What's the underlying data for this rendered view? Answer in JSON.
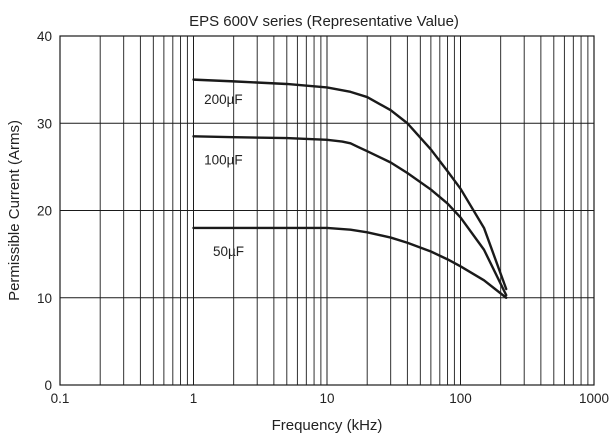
{
  "chart_data": {
    "type": "line",
    "title": "EPS 600V series (Representative Value)",
    "xlabel": "Frequency (kHz)",
    "ylabel": "Permissible Current (Arms)",
    "x_scale": "log",
    "xlim": [
      0.1,
      1000
    ],
    "ylim": [
      0,
      40
    ],
    "x_ticks": [
      {
        "value": 0.1,
        "label": "0.1"
      },
      {
        "value": 1,
        "label": "1"
      },
      {
        "value": 10,
        "label": "10"
      },
      {
        "value": 100,
        "label": "100"
      },
      {
        "value": 1000,
        "label": "1000"
      }
    ],
    "y_ticks": [
      {
        "value": 0,
        "label": "0"
      },
      {
        "value": 10,
        "label": "10"
      },
      {
        "value": 20,
        "label": "20"
      },
      {
        "value": 30,
        "label": "30"
      },
      {
        "value": 40,
        "label": "40"
      }
    ],
    "grid": true,
    "series": [
      {
        "name": "200µF",
        "label_at": [
          1.2,
          32.2
        ],
        "x": [
          1,
          2,
          5,
          10,
          15,
          20,
          30,
          40,
          60,
          80,
          100,
          150,
          220
        ],
        "y": [
          35,
          34.8,
          34.5,
          34.1,
          33.6,
          33.0,
          31.5,
          30.0,
          27.0,
          24.5,
          22.5,
          18.0,
          11.0
        ]
      },
      {
        "name": "100µF",
        "label_at": [
          1.2,
          25.3
        ],
        "x": [
          1,
          2,
          5,
          10,
          13,
          15,
          17,
          20,
          30,
          40,
          60,
          80,
          100,
          150,
          220
        ],
        "y": [
          28.5,
          28.4,
          28.3,
          28.1,
          27.9,
          27.7,
          27.3,
          26.8,
          25.5,
          24.3,
          22.4,
          20.8,
          19.2,
          15.5,
          10.3
        ]
      },
      {
        "name": "50µF",
        "label_at": [
          1.4,
          14.8
        ],
        "x": [
          1,
          2,
          5,
          10,
          15,
          20,
          30,
          40,
          60,
          80,
          100,
          150,
          220
        ],
        "y": [
          18.0,
          18.0,
          18.0,
          18.0,
          17.8,
          17.5,
          16.9,
          16.3,
          15.3,
          14.4,
          13.6,
          12.0,
          10.0
        ]
      }
    ]
  }
}
